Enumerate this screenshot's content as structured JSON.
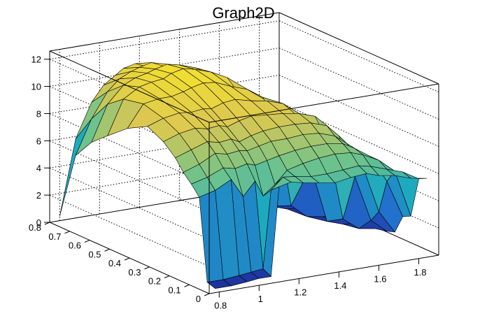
{
  "chart_data": {
    "type": "surface",
    "title": "Graph2D",
    "x_ticks": [
      "0.8",
      "1",
      "1.2",
      "1.4",
      "1.6",
      "1.8"
    ],
    "y_ticks": [
      "0",
      "0.1",
      "0.2",
      "0.3",
      "0.4",
      "0.5",
      "0.6",
      "0.7",
      "0.8"
    ],
    "z_ticks": [
      "0",
      "2",
      "4",
      "6",
      "8",
      "10",
      "12"
    ],
    "xlim": [
      0.75,
      1.9
    ],
    "ylim": [
      0,
      0.8
    ],
    "zlim": [
      0,
      12.6
    ],
    "grid": true,
    "colormap": "viridis-yellow",
    "colors": {
      "low": "#1e3c9e",
      "mid": "#2aa6b8",
      "high": "#f5e626",
      "edge": "#000000"
    },
    "surface_x": [
      0.78,
      0.86,
      0.94,
      1.0,
      1.06,
      1.1,
      1.16,
      1.22,
      1.3,
      1.38,
      1.46,
      1.54,
      1.6,
      1.68,
      1.76,
      1.84
    ],
    "surface_y": [
      0.0,
      0.04,
      0.08,
      0.12,
      0.16,
      0.2,
      0.26,
      0.34,
      0.44,
      0.54,
      0.62,
      0.7,
      0.78
    ],
    "z": [
      [
        0.3,
        0.3,
        0.4,
        0.5,
        0.5,
        7.0,
        7.2,
        7.0,
        6.8,
        6.6,
        6.8,
        6.9,
        6.6,
        6.4,
        6.0,
        5.8
      ],
      [
        0.5,
        0.5,
        0.6,
        0.7,
        0.8,
        6.5,
        7.3,
        7.2,
        7.0,
        7.0,
        7.1,
        7.2,
        7.0,
        6.6,
        6.2,
        5.5
      ],
      [
        6.5,
        6.8,
        7.4,
        6.0,
        7.0,
        5.8,
        6.5,
        7.4,
        7.7,
        7.9,
        8.0,
        7.9,
        7.6,
        7.0,
        6.0,
        2.5
      ],
      [
        7.2,
        7.5,
        8.0,
        7.8,
        8.0,
        7.8,
        8.0,
        8.2,
        8.4,
        8.5,
        8.5,
        8.3,
        7.8,
        7.0,
        5.0,
        2.2
      ],
      [
        7.8,
        8.2,
        8.8,
        8.6,
        8.7,
        8.6,
        8.8,
        9.0,
        9.0,
        9.1,
        9.0,
        8.6,
        7.9,
        6.0,
        2.5,
        0.8
      ],
      [
        8.6,
        9.0,
        9.4,
        9.2,
        9.3,
        9.0,
        9.3,
        9.5,
        9.6,
        9.6,
        9.5,
        9.1,
        8.2,
        5.0,
        1.6,
        0.6
      ],
      [
        9.4,
        9.8,
        10.0,
        9.8,
        9.9,
        9.7,
        10.0,
        10.2,
        10.1,
        10.0,
        9.8,
        9.4,
        7.5,
        1.5,
        0.6,
        0.4
      ],
      [
        10.0,
        10.4,
        10.6,
        10.5,
        10.6,
        10.5,
        10.8,
        10.9,
        10.6,
        10.4,
        10.0,
        8.8,
        5.0,
        0.8,
        0.4,
        0.3
      ],
      [
        9.2,
        10.8,
        11.0,
        11.0,
        11.2,
        11.4,
        11.6,
        11.5,
        11.0,
        10.6,
        9.8,
        7.0,
        1.5,
        0.5,
        0.3,
        0.3
      ],
      [
        8.0,
        10.5,
        11.2,
        11.4,
        11.5,
        11.8,
        12.0,
        11.8,
        11.4,
        10.8,
        9.0,
        4.5,
        0.8,
        0.4,
        0.3,
        0.3
      ],
      [
        7.0,
        9.6,
        10.8,
        11.2,
        11.4,
        11.6,
        11.8,
        11.6,
        11.2,
        10.5,
        8.0,
        2.5,
        0.5,
        0.3,
        0.3,
        0.3
      ],
      [
        5.5,
        8.0,
        9.8,
        10.6,
        11.0,
        11.2,
        11.4,
        11.0,
        10.6,
        9.0,
        5.0,
        1.0,
        0.4,
        0.3,
        0.3,
        0.3
      ],
      [
        0.5,
        6.0,
        8.5,
        9.6,
        10.2,
        10.6,
        10.8,
        10.4,
        9.8,
        7.0,
        2.0,
        0.5,
        0.3,
        0.3,
        0.3,
        0.3
      ]
    ]
  }
}
